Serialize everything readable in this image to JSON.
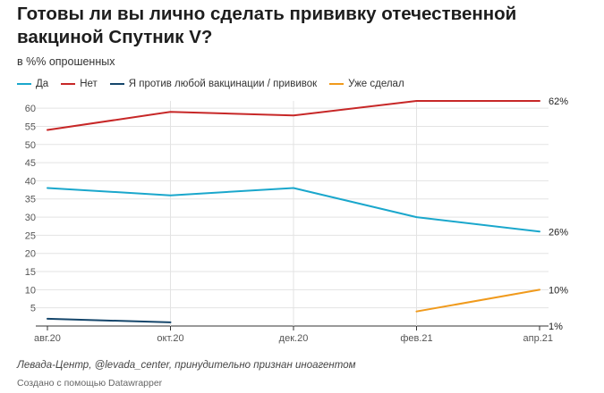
{
  "chart_data": {
    "type": "line",
    "title": "Готовы ли вы лично сделать прививку отечественной вакциной Спутник V?",
    "subtitle": "в %% опрошенных",
    "x": [
      "авг.20",
      "окт.20",
      "дек.20",
      "фев.21",
      "апр.21"
    ],
    "ylim": [
      0,
      62
    ],
    "yticks": [
      5,
      10,
      15,
      20,
      25,
      30,
      35,
      40,
      45,
      50,
      55,
      60
    ],
    "grid": true,
    "legend_position": "top-left",
    "series": [
      {
        "name": "Да",
        "color": "#1aa7cc",
        "values": [
          38,
          36,
          38,
          30,
          26
        ],
        "end_label": "26%"
      },
      {
        "name": "Нет",
        "color": "#c72727",
        "values": [
          54,
          59,
          58,
          62,
          62
        ],
        "end_label": "62%"
      },
      {
        "name": "Я против любой вакцинации / прививок",
        "color": "#15466b",
        "values": [
          2,
          1,
          null,
          null,
          1
        ],
        "end_label": "1%"
      },
      {
        "name": "Уже сделал",
        "color": "#f09a1c",
        "values": [
          null,
          null,
          null,
          4,
          10
        ],
        "end_label": "10%"
      }
    ]
  },
  "footer": {
    "source": "Левада-Центр, @levada_center, принудительно признан иноагентом",
    "credit": "Создано с помощью Datawrapper"
  }
}
